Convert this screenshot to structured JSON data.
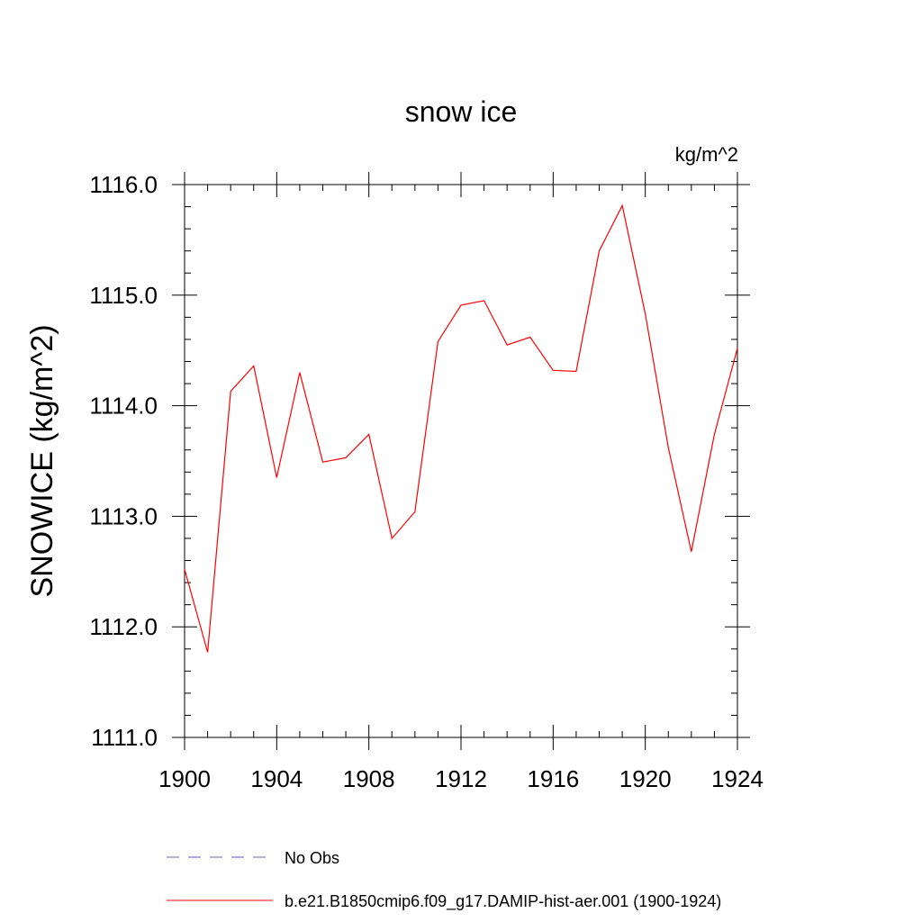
{
  "chart_data": {
    "type": "line",
    "title": "snow ice",
    "units": "kg/m^2",
    "ylabel": "SNOWICE  (kg/m^2)",
    "xlabel": "",
    "xlim": [
      1900,
      1924
    ],
    "ylim": [
      1111.0,
      1116.0
    ],
    "xticks": [
      1900,
      1904,
      1908,
      1912,
      1916,
      1920,
      1924
    ],
    "xtick_labels": [
      "1900",
      "1904",
      "1908",
      "1912",
      "1916",
      "1920",
      "1924"
    ],
    "yticks": [
      1111.0,
      1112.0,
      1113.0,
      1114.0,
      1115.0,
      1116.0
    ],
    "ytick_labels": [
      "1111.0",
      "1112.0",
      "1113.0",
      "1114.0",
      "1115.0",
      "1116.0"
    ],
    "grid": false,
    "legend_position": "bottom",
    "series": [
      {
        "name": "No Obs",
        "color": "#6a5acd",
        "style": "dashed",
        "x": [],
        "y": []
      },
      {
        "name": "b.e21.B1850cmip6.f09_g17.DAMIP-hist-aer.001 (1900-1924)",
        "color": "#ff0000",
        "style": "solid",
        "x": [
          1900,
          1901,
          1902,
          1903,
          1904,
          1905,
          1906,
          1907,
          1908,
          1909,
          1910,
          1911,
          1912,
          1913,
          1914,
          1915,
          1916,
          1917,
          1918,
          1919,
          1920,
          1921,
          1922,
          1923,
          1924
        ],
        "y": [
          1112.52,
          1111.77,
          1114.13,
          1114.36,
          1113.35,
          1114.3,
          1113.49,
          1113.53,
          1113.74,
          1112.8,
          1113.04,
          1114.58,
          1114.91,
          1114.95,
          1114.55,
          1114.62,
          1114.32,
          1114.31,
          1115.4,
          1115.81,
          1114.83,
          1113.62,
          1112.68,
          1113.74,
          1114.52
        ]
      }
    ]
  }
}
